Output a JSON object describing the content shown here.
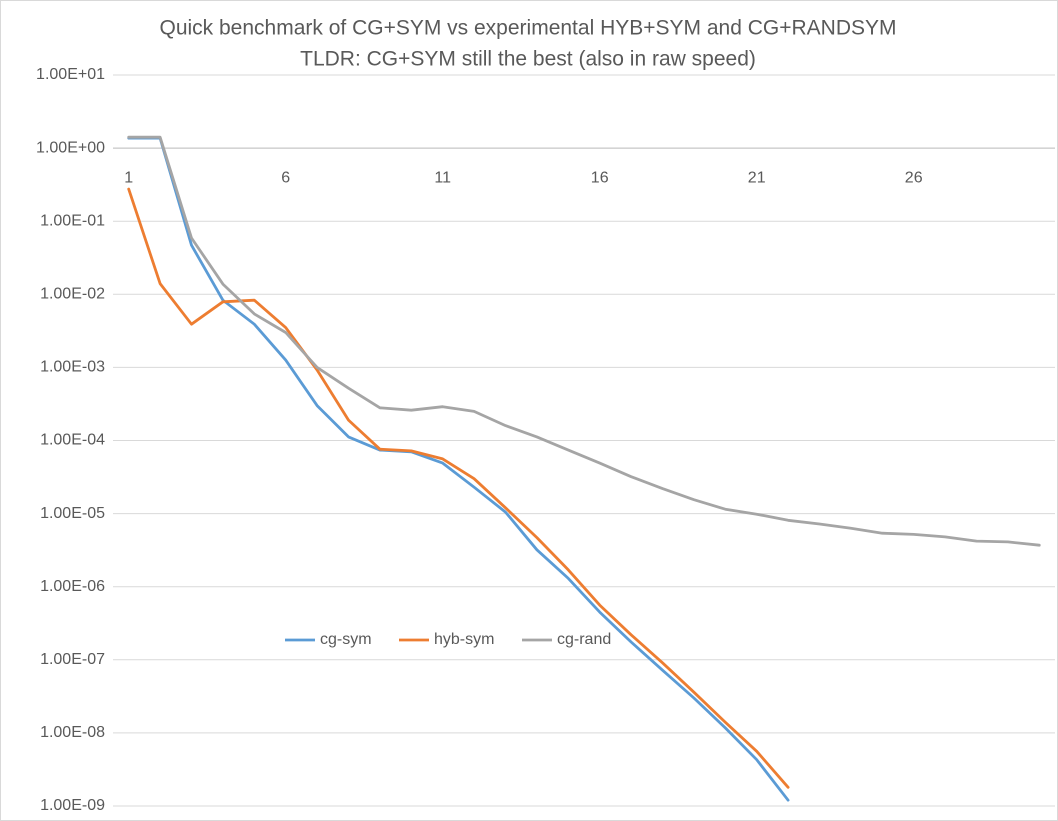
{
  "chart_data": {
    "type": "line",
    "title": "Quick benchmark of CG+SYM vs experimental HYB+SYM and CG+RANDSYM",
    "subtitle": "TLDR: CG+SYM still the best (also in raw speed)",
    "x": [
      1,
      2,
      3,
      4,
      5,
      6,
      7,
      8,
      9,
      10,
      11,
      12,
      13,
      14,
      15,
      16,
      17,
      18,
      19,
      20,
      21,
      22,
      23,
      24,
      25,
      26,
      27,
      28,
      29,
      30
    ],
    "xlim": [
      0.5,
      30.5
    ],
    "xticks": [
      1,
      6,
      11,
      16,
      21,
      26
    ],
    "x_axis_crosses": 1,
    "log_y": true,
    "ylim": [
      1e-09,
      10
    ],
    "yticks": [
      {
        "value": 10,
        "label": "1.00E+01"
      },
      {
        "value": 1,
        "label": "1.00E+00"
      },
      {
        "value": 0.1,
        "label": "1.00E-01"
      },
      {
        "value": 0.01,
        "label": "1.00E-02"
      },
      {
        "value": 0.001,
        "label": "1.00E-03"
      },
      {
        "value": 0.0001,
        "label": "1.00E-04"
      },
      {
        "value": 1e-05,
        "label": "1.00E-05"
      },
      {
        "value": 1e-06,
        "label": "1.00E-06"
      },
      {
        "value": 1e-07,
        "label": "1.00E-07"
      },
      {
        "value": 1e-08,
        "label": "1.00E-08"
      },
      {
        "value": 1e-09,
        "label": "1.00E-09"
      }
    ],
    "grid": true,
    "legend_position": "bottom",
    "series": [
      {
        "name": "cg-sym",
        "color": "#5b9bd5",
        "values": [
          1.37,
          1.37,
          0.047,
          0.0083,
          0.0039,
          0.00126,
          0.0003,
          0.000112,
          7.4e-05,
          7e-05,
          4.9e-05,
          2.3e-05,
          1.05e-05,
          3.2e-06,
          1.3e-06,
          4.5e-07,
          1.75e-07,
          7.2e-08,
          3e-08,
          1.17e-08,
          4.3e-09,
          1.2e-09,
          null,
          null,
          null,
          null,
          null,
          null,
          null,
          null
        ]
      },
      {
        "name": "hyb-sym",
        "color": "#ed7d31",
        "values": [
          0.275,
          0.014,
          0.0039,
          0.0079,
          0.0083,
          0.0035,
          0.00092,
          0.00019,
          7.6e-05,
          7.2e-05,
          5.6e-05,
          3e-05,
          1.2e-05,
          4.7e-06,
          1.7e-06,
          5.6e-07,
          2.2e-07,
          9.1e-08,
          3.6e-08,
          1.4e-08,
          5.6e-09,
          1.8e-09,
          null,
          null,
          null,
          null,
          null,
          null,
          null,
          null
        ]
      },
      {
        "name": "cg-rand",
        "color": "#a5a5a5",
        "values": [
          1.41,
          1.41,
          0.059,
          0.0138,
          0.0054,
          0.003,
          0.001,
          0.00052,
          0.00028,
          0.00026,
          0.00029,
          0.00025,
          0.00016,
          0.000112,
          7.4e-05,
          4.9e-05,
          3.2e-05,
          2.2e-05,
          1.55e-05,
          1.15e-05,
          9.8e-06,
          8.1e-06,
          7.2e-06,
          6.3e-06,
          5.4e-06,
          5.2e-06,
          4.8e-06,
          4.2e-06,
          4.1e-06,
          3.7e-06
        ]
      }
    ]
  }
}
